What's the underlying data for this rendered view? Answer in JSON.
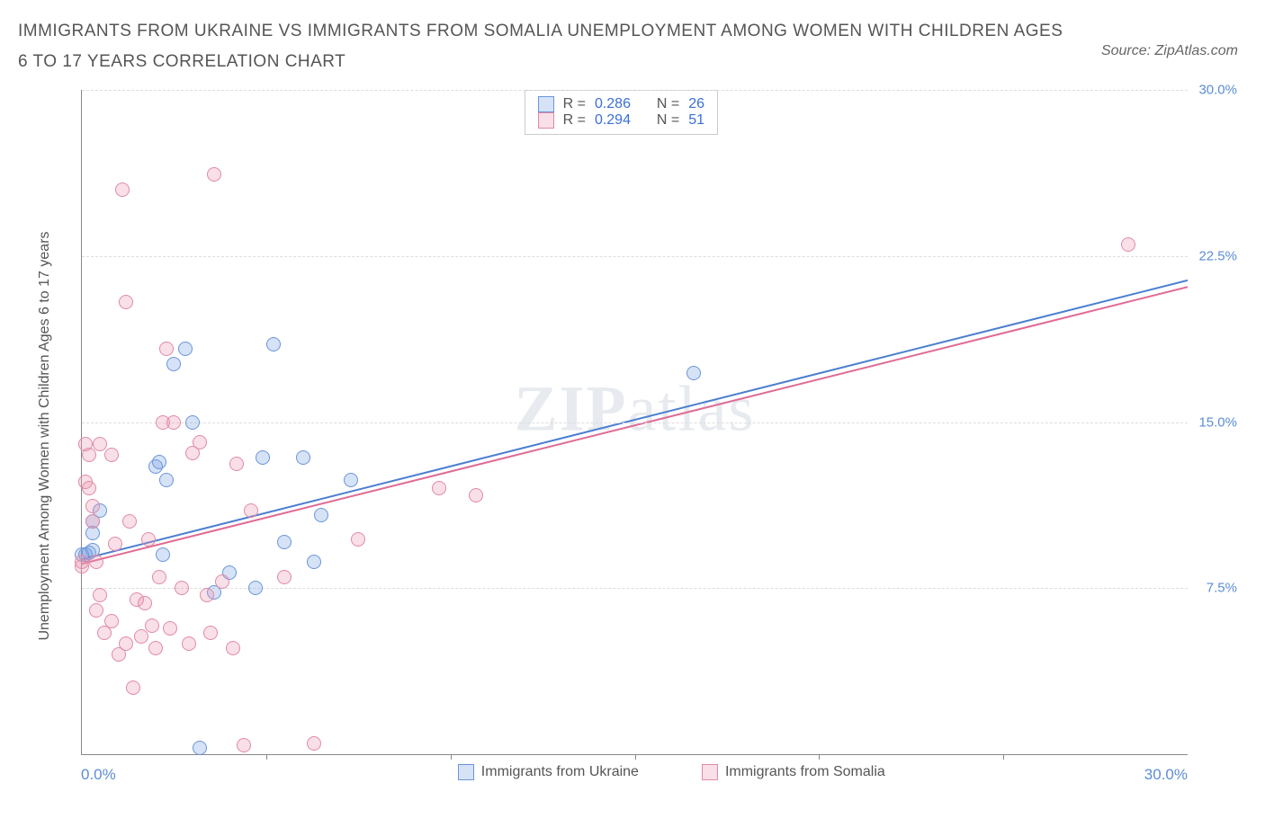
{
  "title": "IMMIGRANTS FROM UKRAINE VS IMMIGRANTS FROM SOMALIA UNEMPLOYMENT AMONG WOMEN WITH CHILDREN AGES 6 TO 17 YEARS CORRELATION CHART",
  "source": "Source: ZipAtlas.com",
  "watermark": "ZIPatlas",
  "chart": {
    "type": "scatter",
    "xlim": [
      0,
      30
    ],
    "ylim": [
      0,
      30
    ],
    "x_min_label": "0.0%",
    "x_max_label": "30.0%",
    "y_ticks": [
      7.5,
      15.0,
      22.5,
      30.0
    ],
    "y_tick_labels": [
      "7.5%",
      "15.0%",
      "22.5%",
      "30.0%"
    ],
    "x_tick_positions": [
      5,
      10,
      15,
      20,
      25
    ],
    "y_axis_label": "Unemployment Among Women with Children Ages 6 to 17 years",
    "grid_color": "#dddddd",
    "background_color": "#ffffff",
    "axis_color": "#888888",
    "tick_label_color": "#5b8dd6",
    "marker_radius": 8,
    "marker_stroke_width": 1.4,
    "trend_line_width": 2
  },
  "series": [
    {
      "name": "Immigrants from Ukraine",
      "fill": "rgba(120,160,225,0.30)",
      "stroke": "#6a95d9",
      "line_color": "#4a7fd0",
      "R": "0.286",
      "N": "26",
      "trend": {
        "x1": 0,
        "y1": 8.8,
        "x2": 30,
        "y2": 21.4
      },
      "points": [
        [
          0.0,
          9.0
        ],
        [
          0.2,
          9.1
        ],
        [
          0.3,
          9.2
        ],
        [
          0.1,
          9.0
        ],
        [
          0.3,
          10.0
        ],
        [
          0.3,
          10.5
        ],
        [
          0.5,
          11.0
        ],
        [
          2.0,
          13.0
        ],
        [
          2.3,
          12.4
        ],
        [
          2.2,
          9.0
        ],
        [
          2.1,
          13.2
        ],
        [
          2.5,
          17.6
        ],
        [
          2.8,
          18.3
        ],
        [
          3.0,
          15.0
        ],
        [
          3.6,
          7.3
        ],
        [
          4.0,
          8.2
        ],
        [
          3.2,
          0.3
        ],
        [
          4.7,
          7.5
        ],
        [
          4.9,
          13.4
        ],
        [
          5.2,
          18.5
        ],
        [
          5.5,
          9.6
        ],
        [
          6.0,
          13.4
        ],
        [
          6.3,
          8.7
        ],
        [
          6.5,
          10.8
        ],
        [
          7.3,
          12.4
        ],
        [
          16.6,
          17.2
        ]
      ]
    },
    {
      "name": "Immigrants from Somalia",
      "fill": "rgba(235,150,175,0.30)",
      "stroke": "#e08aa5",
      "line_color": "#e06a93",
      "R": "0.294",
      "N": "51",
      "trend": {
        "x1": 0,
        "y1": 8.6,
        "x2": 30,
        "y2": 21.1
      },
      "points": [
        [
          0.0,
          8.5
        ],
        [
          0.0,
          8.7
        ],
        [
          0.1,
          14.0
        ],
        [
          0.1,
          12.3
        ],
        [
          0.2,
          12.0
        ],
        [
          0.2,
          13.5
        ],
        [
          0.3,
          11.2
        ],
        [
          0.3,
          10.5
        ],
        [
          0.4,
          6.5
        ],
        [
          0.4,
          8.7
        ],
        [
          0.5,
          14.0
        ],
        [
          0.5,
          7.2
        ],
        [
          0.6,
          5.5
        ],
        [
          0.8,
          6.0
        ],
        [
          0.8,
          13.5
        ],
        [
          0.9,
          9.5
        ],
        [
          1.0,
          4.5
        ],
        [
          1.1,
          25.5
        ],
        [
          1.2,
          5.0
        ],
        [
          1.2,
          20.4
        ],
        [
          1.3,
          10.5
        ],
        [
          1.4,
          3.0
        ],
        [
          1.5,
          7.0
        ],
        [
          1.6,
          5.3
        ],
        [
          1.7,
          6.8
        ],
        [
          1.8,
          9.7
        ],
        [
          1.9,
          5.8
        ],
        [
          2.0,
          4.8
        ],
        [
          2.1,
          8.0
        ],
        [
          2.2,
          15.0
        ],
        [
          2.3,
          18.3
        ],
        [
          2.4,
          5.7
        ],
        [
          2.5,
          15.0
        ],
        [
          2.7,
          7.5
        ],
        [
          2.9,
          5.0
        ],
        [
          3.0,
          13.6
        ],
        [
          3.2,
          14.1
        ],
        [
          3.4,
          7.2
        ],
        [
          3.5,
          5.5
        ],
        [
          3.6,
          26.2
        ],
        [
          3.8,
          7.8
        ],
        [
          4.1,
          4.8
        ],
        [
          4.2,
          13.1
        ],
        [
          4.4,
          0.4
        ],
        [
          4.6,
          11.0
        ],
        [
          5.5,
          8.0
        ],
        [
          6.3,
          0.5
        ],
        [
          7.5,
          9.7
        ],
        [
          9.7,
          12.0
        ],
        [
          10.7,
          11.7
        ],
        [
          28.4,
          23.0
        ]
      ]
    }
  ],
  "stats_labels": {
    "R": "R =",
    "N": "N ="
  },
  "legend": {
    "item1": "Immigrants from Ukraine",
    "item2": "Immigrants from Somalia"
  }
}
